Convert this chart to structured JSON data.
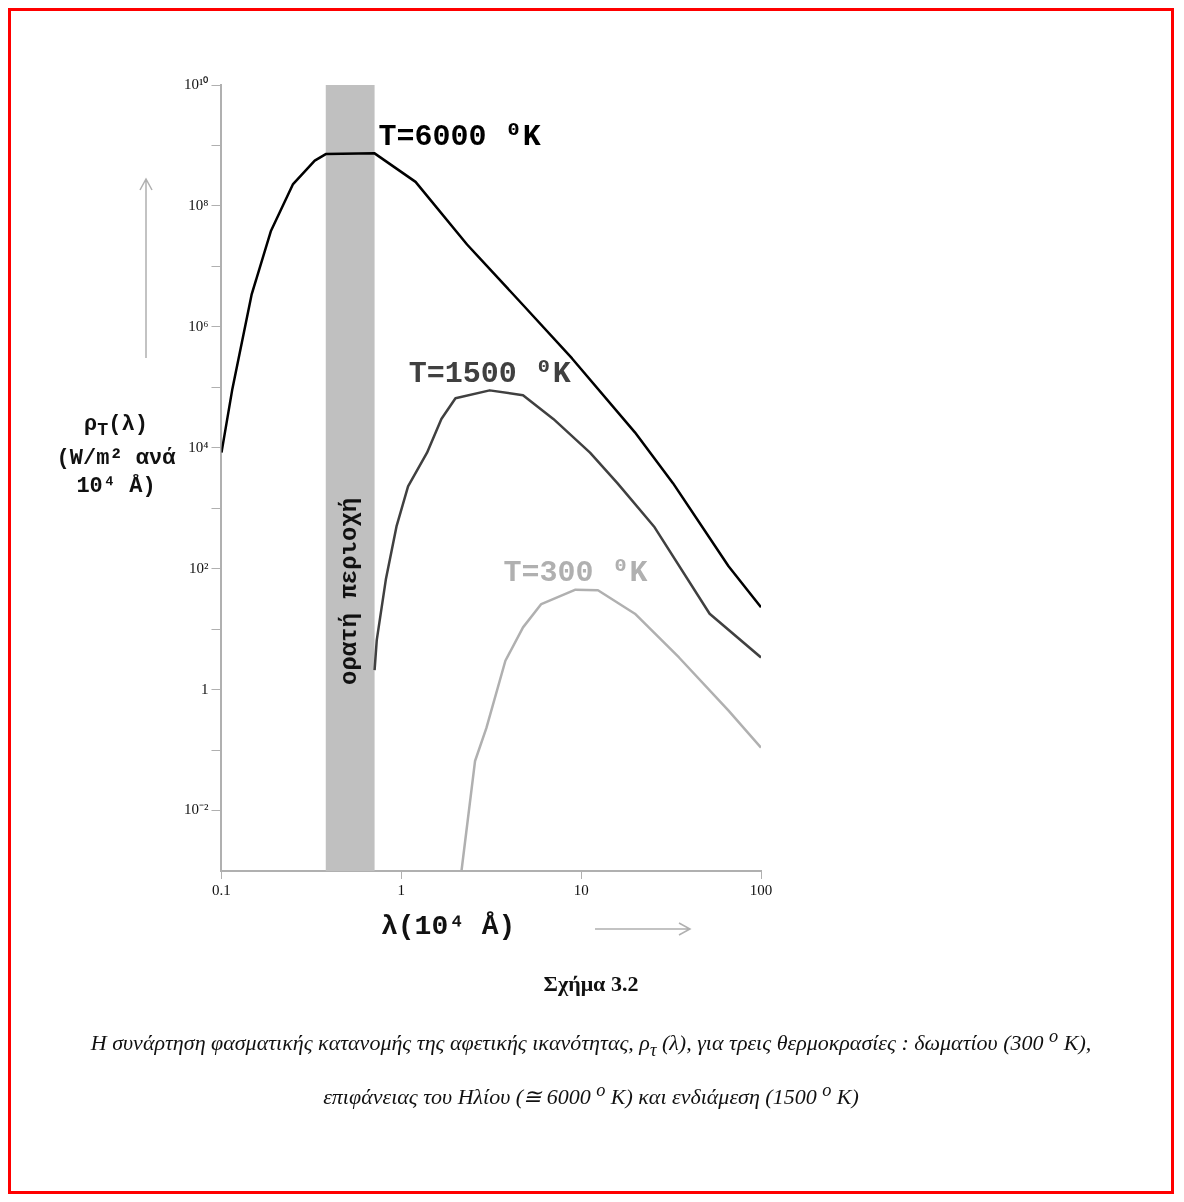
{
  "chart_data": {
    "type": "line",
    "title": "Σχήμα 3.2",
    "xlabel": "λ(10⁴ Å)",
    "ylabel": "ρ$_{T}$(λ) (W/m² ανά 10⁴ Å)",
    "annotations": [
      "Η συνάρτηση φασματικής κατανομής της αφετικής ικανότητας,  ρ$_{τ}$  (λ), για τρεις θερμοκρασίες  :  δωματίου (300 $^{o}$ K),  επιφάνειας του Ηλίου  (≅  6000 $^{o}$ K) και ενδιάμεση (1500 $^{o}$ K)"
    ],
    "log": "xy",
    "grid": false,
    "legend": false,
    "marker": "none",
    "line_style": "solid",
    "xlim": [
      0.1,
      100
    ],
    "xticks": [
      0.1,
      1,
      10,
      100
    ],
    "ylim": [
      0.001,
      10000000000.0
    ],
    "yticks": [
      {
        "value": 0.01,
        "label": "10⁻²"
      },
      {
        "value": 0.1,
        "label": null
      },
      {
        "value": 1,
        "label": "1"
      },
      {
        "value": 10,
        "label": null
      },
      {
        "value": 100,
        "label": "10²"
      },
      {
        "value": 1000,
        "label": null
      },
      {
        "value": 10000,
        "label": "10⁴"
      },
      {
        "value": 100000,
        "label": null
      },
      {
        "value": 1000000,
        "label": "10⁶"
      },
      {
        "value": 10000000,
        "label": null
      },
      {
        "value": 100000000,
        "label": "10⁸"
      },
      {
        "value": 1000000000,
        "label": null
      },
      {
        "value": 10000000000,
        "label": "10¹⁰"
      }
    ],
    "bands": [
      {
        "axis": "x",
        "from": 0.38,
        "to": 0.71,
        "label": "ορατή περιοχή",
        "color": "#c0c0c0"
      }
    ],
    "series": [
      {
        "name": "T=6000 ⁰K",
        "color": "#000000",
        "x": [
          0.1,
          0.115,
          0.147,
          0.188,
          0.25,
          0.33,
          0.38,
          0.71,
          1.2,
          2.32,
          4.75,
          8.9,
          19.9,
          32.4,
          66,
          100
        ],
        "values": [
          8300,
          95000,
          3400000,
          38000000,
          230000000,
          560000000,
          720000000,
          740000000,
          250000000,
          23000000,
          2300000,
          300000,
          18000,
          2600,
          110,
          23
        ]
      },
      {
        "name": "T=1500 ⁰K",
        "color": "#404040",
        "x": [
          0.71,
          0.73,
          0.82,
          0.94,
          1.09,
          1.39,
          1.67,
          2.0,
          3.1,
          4.75,
          7.0,
          11.2,
          15.9,
          25.4,
          51.8,
          100
        ],
        "values": [
          2.1,
          6.6,
          66,
          500,
          2300,
          8300,
          30000,
          66000,
          89000,
          74000,
          30000,
          8300,
          2600,
          500,
          18,
          3.4
        ]
      },
      {
        "name": "T=300 ⁰K",
        "color": "#b0b0b0",
        "x": [
          2.16,
          2.57,
          2.97,
          3.79,
          4.75,
          6.0,
          9.3,
          12.4,
          19.9,
          35,
          66,
          100
        ],
        "values": [
          0.001,
          0.066,
          0.23,
          3.0,
          10.7,
          26,
          45,
          44,
          18,
          3.4,
          0.45,
          0.11
        ]
      }
    ]
  }
}
